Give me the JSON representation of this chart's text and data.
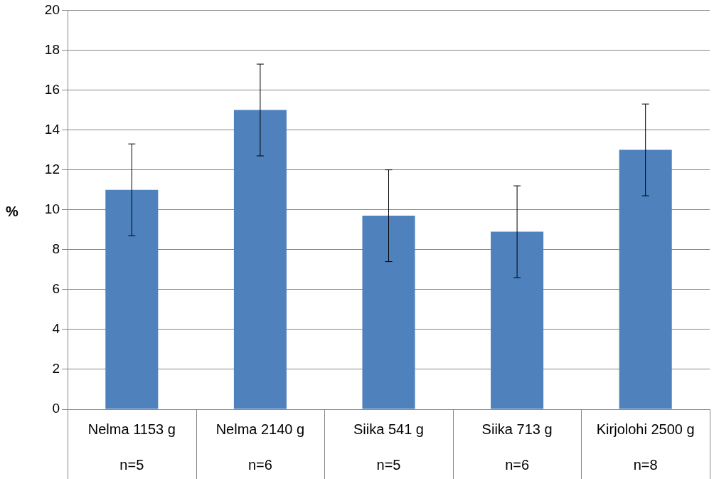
{
  "chart_data": {
    "type": "bar",
    "ylabel": "%",
    "categories": [
      "Nelma 1153 g\nn=5",
      "Nelma 2140 g\nn=6",
      "Siika 541 g\nn=5",
      "Siika 713 g\nn=6",
      "Kirjolohi 2500 g\nn=8"
    ],
    "values": [
      11.0,
      15.0,
      9.7,
      8.9,
      13.0
    ],
    "errors": [
      2.3,
      2.3,
      2.3,
      2.3,
      2.3
    ],
    "color": "#4f81bd",
    "ylim": [
      0,
      20
    ],
    "yticks": [
      0,
      2,
      4,
      6,
      8,
      10,
      12,
      14,
      16,
      18,
      20
    ],
    "grid": "y",
    "legend": false
  }
}
